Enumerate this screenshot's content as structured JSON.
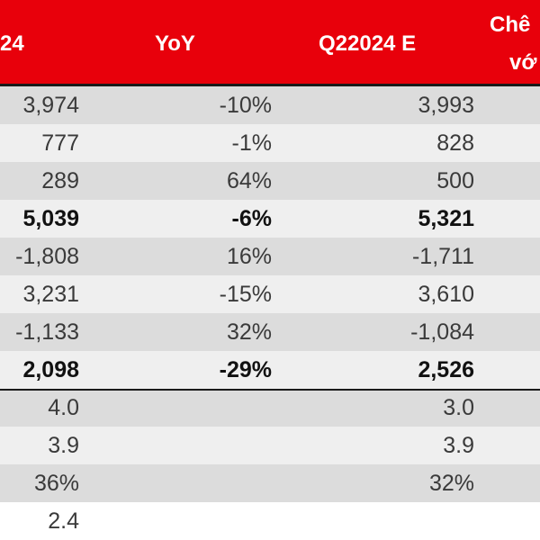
{
  "header": {
    "col1": "24",
    "col2": "YoY",
    "col3": "Q22024 E",
    "col4_line1": "Chê",
    "col4_line2": "vớ"
  },
  "colors": {
    "header_bg": "#e8000b",
    "row_shade": "#dcdcdc",
    "row_light": "#efefef"
  },
  "rows": [
    {
      "v1": "3,974",
      "v2": "-10%",
      "v3": "3,993",
      "bold": false
    },
    {
      "v1": "777",
      "v2": "-1%",
      "v3": "828",
      "bold": false
    },
    {
      "v1": "289",
      "v2": "64%",
      "v3": "500",
      "bold": false
    },
    {
      "v1": "5,039",
      "v2": "-6%",
      "v3": "5,321",
      "bold": true
    },
    {
      "v1": "-1,808",
      "v2": "16%",
      "v3": "-1,711",
      "bold": false
    },
    {
      "v1": "3,231",
      "v2": "-15%",
      "v3": "3,610",
      "bold": false
    },
    {
      "v1": "-1,133",
      "v2": "32%",
      "v3": "-1,084",
      "bold": false
    },
    {
      "v1": "2,098",
      "v2": "-29%",
      "v3": "2,526",
      "bold": true
    },
    {
      "v1": "4.0",
      "v2": "",
      "v3": "3.0",
      "bold": false
    },
    {
      "v1": "3.9",
      "v2": "",
      "v3": "3.9",
      "bold": false
    },
    {
      "v1": "36%",
      "v2": "",
      "v3": "32%",
      "bold": false
    },
    {
      "v1": "2.4",
      "v2": "",
      "v3": "",
      "bold": false
    }
  ]
}
